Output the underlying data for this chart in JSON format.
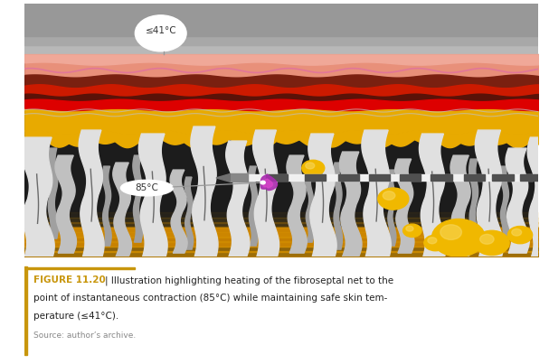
{
  "fig_width": 6.07,
  "fig_height": 4.03,
  "dpi": 100,
  "bg_color": "#ffffff",
  "caption_bold": "FIGURE 11.20",
  "caption_pipe": " | ",
  "caption_normal_1": "Illustration highlighting heating of the fibroseptal net to the",
  "caption_normal_2": "point of instantaneous contraction (85°C) while maintaining safe skin tem-",
  "caption_normal_3": "perature (≤41°C).",
  "caption_source": "Source: author’s archive.",
  "caption_color_bold": "#c8960c",
  "caption_color_normal": "#222222",
  "caption_source_color": "#888888",
  "border_color": "#c8960c",
  "label_41": "≤41°C",
  "label_85": "85°C",
  "gray_bg": "#9a9a9a",
  "gray_bg_light": "#c8c8c8",
  "skin_salmon": "#e8907a",
  "skin_pink_highlight": "#f0a898",
  "skin_dark_pink": "#cc5060",
  "skin_dark_brown": "#7a2010",
  "skin_red": "#cc1a00",
  "skin_bright_red": "#dd0000",
  "skin_deep_red": "#aa0000",
  "fat_yellow": "#e8aa00",
  "fat_dark_yellow": "#c88800",
  "fat_glow": "#d4a000",
  "fibro_white": "#e0e0e0",
  "fibro_mid": "#c0c0c0",
  "fibro_shadow": "#a0a0a0",
  "bg_black": "#1c1c1c",
  "needle_white": "#f0f0f0",
  "needle_dark": "#505050",
  "heat_purple": "#aa2db0",
  "heat_pink": "#dd44cc",
  "sphere_yellow": "#f0b800",
  "sphere_highlight": "#f8d860"
}
